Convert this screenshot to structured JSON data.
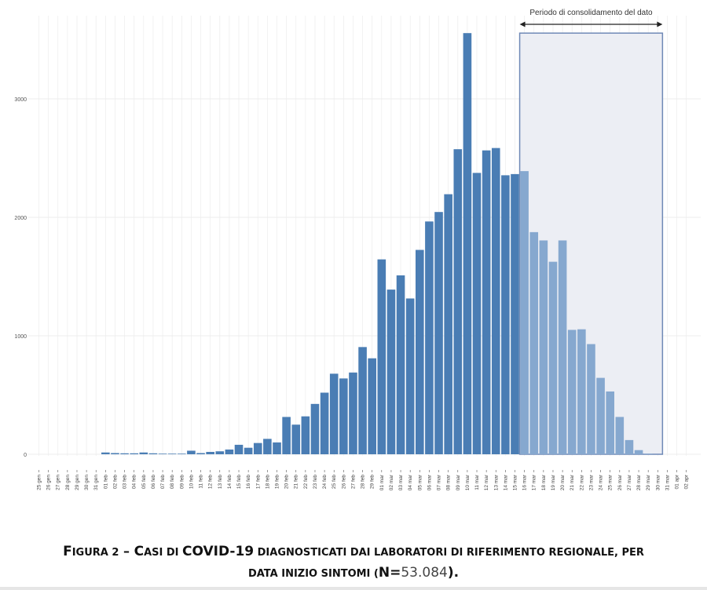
{
  "chart_data": {
    "type": "bar",
    "title": "",
    "xlabel": "",
    "ylabel": "",
    "ylim": [
      0,
      3600
    ],
    "yticks": [
      0,
      1000,
      2000,
      3000
    ],
    "grid": true,
    "x_tick_labels": [
      "25 gen",
      "26 gen",
      "27 gen",
      "28 gen",
      "29 gen",
      "30 gen",
      "31 gen",
      "01 feb",
      "02 feb",
      "03 feb",
      "04 feb",
      "05 feb",
      "06 feb",
      "07 feb",
      "08 feb",
      "09 feb",
      "10 feb",
      "11 feb",
      "12 feb",
      "13 feb",
      "14 feb",
      "15 feb",
      "16 feb",
      "17 feb",
      "18 feb",
      "19 feb",
      "20 feb",
      "21 feb",
      "22 feb",
      "23 feb",
      "24 feb",
      "25 feb",
      "26 feb",
      "27 feb",
      "28 feb",
      "29 feb",
      "01 mar",
      "02 mar",
      "03 mar",
      "04 mar",
      "05 mar",
      "06 mar",
      "07 mar",
      "08 mar",
      "09 mar",
      "10 mar",
      "11 mar",
      "12 mar",
      "13 mar",
      "14 mar",
      "15 mar",
      "16 mar",
      "17 mar",
      "18 mar",
      "19 mar",
      "20 mar",
      "21 mar",
      "22 mar",
      "23 mar",
      "24 mar",
      "25 mar",
      "26 mar",
      "27 mar",
      "28 mar",
      "29 mar",
      "30 mar",
      "31 mar",
      "01 apr",
      "02 apr"
    ],
    "values": [
      0,
      0,
      0,
      0,
      0,
      0,
      0,
      15,
      10,
      8,
      8,
      15,
      8,
      5,
      5,
      5,
      30,
      10,
      20,
      25,
      40,
      80,
      55,
      95,
      130,
      100,
      315,
      250,
      320,
      425,
      520,
      680,
      640,
      690,
      905,
      810,
      1645,
      1390,
      1510,
      1315,
      1725,
      1965,
      2045,
      2195,
      2575,
      3555,
      2375,
      2565,
      2585,
      2355,
      2365,
      2390,
      1875,
      1805,
      1625,
      1805,
      1050,
      1055,
      930,
      645,
      530,
      315,
      120,
      35,
      5,
      0,
      0,
      0,
      0
    ],
    "consolidation_start": "16 mar",
    "consolidation_end": "30 mar",
    "annotation": "Periodo di consolidamento del dato",
    "colors": {
      "bar": "#4a7db4",
      "bar_recent": "#86a8cf",
      "shade": "#eceef4",
      "shade_border": "#6f89b6",
      "grid": "#ececec"
    }
  },
  "caption": {
    "prefix_letter": "F",
    "prefix_rest": "IGURA 2",
    "dash": " – ",
    "c_letter": "C",
    "c_rest": "ASI DI ",
    "covid": "COVID-19",
    "line1_rest": " DIAGNOSTICATI DAI LABORATORI DI RIFERIMENTO REGIONALE, PER",
    "line2_a": "DATA INIZIO SINTOMI (",
    "n_label": "N=",
    "n_value": "53.084",
    "line2_b": ")."
  }
}
